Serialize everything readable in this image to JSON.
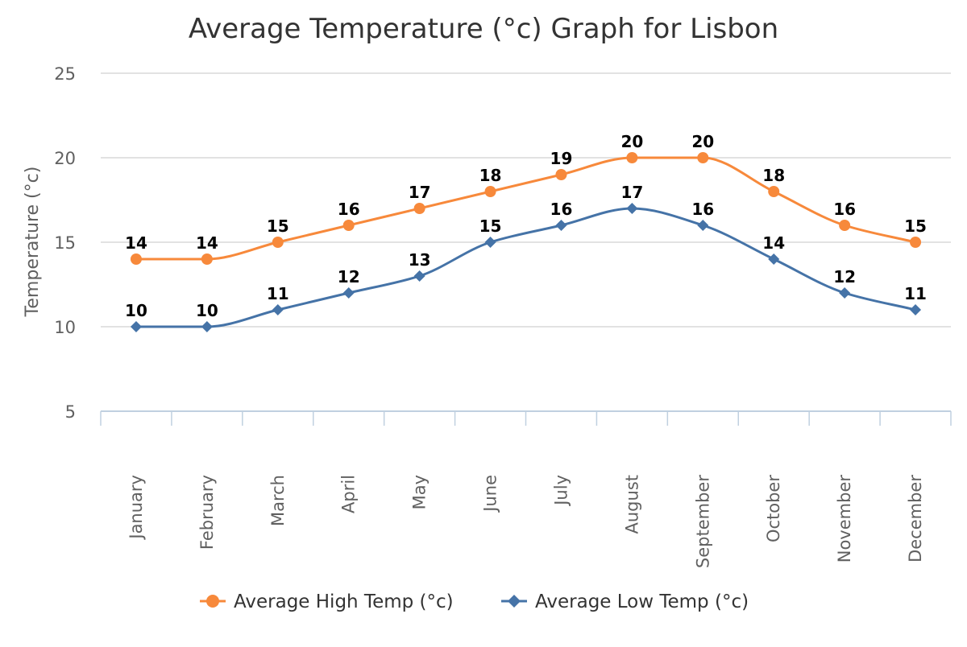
{
  "chart_data": {
    "type": "line",
    "title": "Average Temperature (°c) Graph for Lisbon",
    "xlabel": "",
    "ylabel": "Temperature (°c)",
    "ylim": [
      5,
      25
    ],
    "yticks": [
      5,
      10,
      15,
      20,
      25
    ],
    "categories": [
      "January",
      "February",
      "March",
      "April",
      "May",
      "June",
      "July",
      "August",
      "September",
      "October",
      "November",
      "December"
    ],
    "series": [
      {
        "name": "Average High Temp (°c)",
        "values": [
          14,
          14,
          15,
          16,
          17,
          18,
          19,
          20,
          20,
          18,
          16,
          15
        ],
        "color": "#f7893b",
        "marker": "circle"
      },
      {
        "name": "Average Low Temp (°c)",
        "values": [
          10,
          10,
          11,
          12,
          13,
          15,
          16,
          17,
          16,
          14,
          12,
          11
        ],
        "color": "#4573a7",
        "marker": "diamond"
      }
    ],
    "grid": true,
    "legend": "bottom-center",
    "data_labels": true,
    "smooth": true
  }
}
